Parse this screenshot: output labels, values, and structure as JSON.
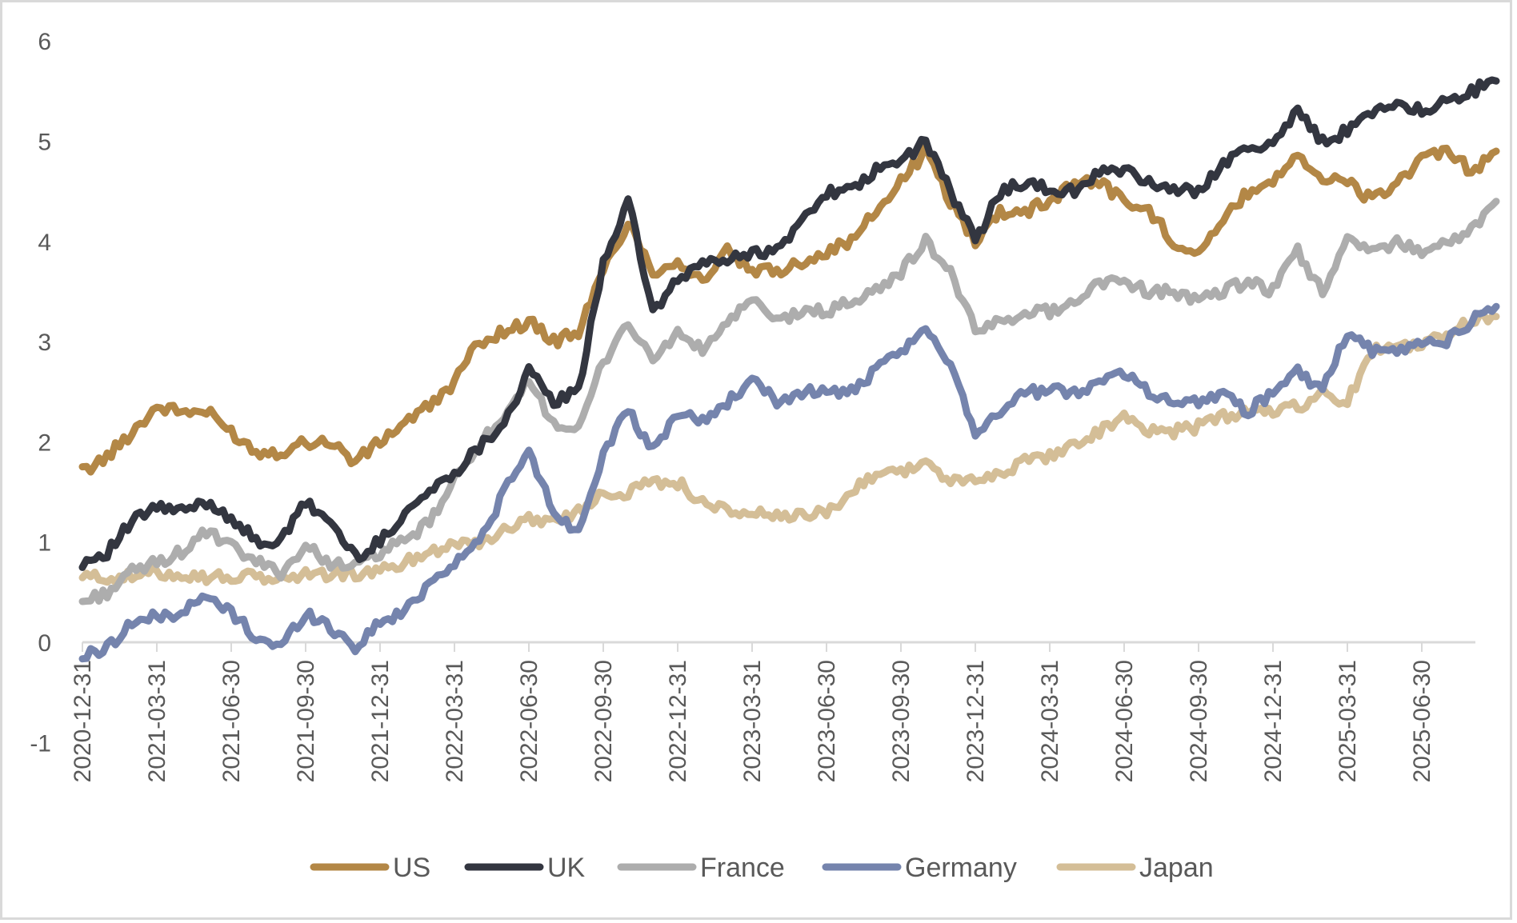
{
  "chart_data": {
    "type": "line",
    "title": "",
    "xlabel": "",
    "ylabel": "",
    "ylim": [
      -1,
      6
    ],
    "y_ticks": [
      "-1",
      "0",
      "1",
      "2",
      "3",
      "4",
      "5",
      "6"
    ],
    "x_tick_labels": [
      "2020-12-31",
      "2021-03-31",
      "2021-06-30",
      "2021-09-30",
      "2021-12-31",
      "2022-03-31",
      "2022-06-30",
      "2022-09-30",
      "2022-12-31",
      "2023-03-31",
      "2023-06-30",
      "2023-09-30",
      "2023-12-31",
      "2024-03-31",
      "2024-06-30",
      "2024-09-30",
      "2024-12-31",
      "2025-03-31",
      "2025-06-30"
    ],
    "x": [
      "2020-12",
      "2021-01",
      "2021-02",
      "2021-03",
      "2021-04",
      "2021-05",
      "2021-06",
      "2021-07",
      "2021-08",
      "2021-09",
      "2021-10",
      "2021-11",
      "2021-12",
      "2022-01",
      "2022-02",
      "2022-03",
      "2022-04",
      "2022-05",
      "2022-06",
      "2022-07",
      "2022-08",
      "2022-09",
      "2022-10",
      "2022-11",
      "2022-12",
      "2023-01",
      "2023-02",
      "2023-03",
      "2023-04",
      "2023-05",
      "2023-06",
      "2023-07",
      "2023-08",
      "2023-09",
      "2023-10",
      "2023-11",
      "2023-12",
      "2024-01",
      "2024-02",
      "2024-03",
      "2024-04",
      "2024-05",
      "2024-06",
      "2024-07",
      "2024-08",
      "2024-09",
      "2024-10",
      "2024-11",
      "2024-12",
      "2025-01",
      "2025-02",
      "2025-03",
      "2025-04",
      "2025-05",
      "2025-06",
      "2025-07",
      "2025-08",
      "2025-09"
    ],
    "grid": false,
    "legend_position": "bottom",
    "series": [
      {
        "name": "US",
        "color": "#b38746",
        "values": [
          1.7,
          1.85,
          2.1,
          2.35,
          2.3,
          2.3,
          2.1,
          1.9,
          1.9,
          2.0,
          2.0,
          1.8,
          2.0,
          2.2,
          2.35,
          2.6,
          3.0,
          3.1,
          3.2,
          3.0,
          3.1,
          3.7,
          4.2,
          3.7,
          3.8,
          3.6,
          3.9,
          3.7,
          3.7,
          3.8,
          3.9,
          4.0,
          4.3,
          4.6,
          4.9,
          4.4,
          4.0,
          4.3,
          4.3,
          4.4,
          4.6,
          4.6,
          4.4,
          4.3,
          4.0,
          3.9,
          4.2,
          4.5,
          4.6,
          4.9,
          4.6,
          4.6,
          4.4,
          4.6,
          4.8,
          4.9,
          4.7,
          4.9
        ]
      },
      {
        "name": "UK",
        "color": "#333640",
        "values": [
          0.8,
          0.9,
          1.2,
          1.35,
          1.3,
          1.4,
          1.25,
          1.0,
          1.0,
          1.4,
          1.2,
          0.85,
          1.0,
          1.3,
          1.5,
          1.7,
          1.95,
          2.2,
          2.7,
          2.4,
          2.5,
          3.8,
          4.4,
          3.3,
          3.6,
          3.8,
          3.8,
          3.9,
          3.9,
          4.2,
          4.5,
          4.5,
          4.7,
          4.8,
          5.0,
          4.5,
          4.0,
          4.5,
          4.6,
          4.5,
          4.5,
          4.7,
          4.7,
          4.6,
          4.5,
          4.5,
          4.8,
          4.9,
          5.0,
          5.3,
          5.0,
          5.1,
          5.3,
          5.4,
          5.3,
          5.4,
          5.5,
          5.6
        ]
      },
      {
        "name": "France",
        "color": "#adadad",
        "values": [
          0.4,
          0.5,
          0.7,
          0.8,
          0.9,
          1.1,
          0.95,
          0.8,
          0.7,
          0.95,
          0.8,
          0.75,
          0.9,
          1.0,
          1.2,
          1.6,
          2.0,
          2.2,
          2.6,
          2.2,
          2.1,
          2.8,
          3.2,
          2.8,
          3.1,
          2.9,
          3.2,
          3.4,
          3.2,
          3.3,
          3.3,
          3.4,
          3.5,
          3.7,
          4.0,
          3.7,
          3.1,
          3.2,
          3.3,
          3.3,
          3.4,
          3.6,
          3.6,
          3.5,
          3.5,
          3.4,
          3.5,
          3.6,
          3.5,
          3.9,
          3.5,
          4.0,
          3.9,
          4.0,
          3.9,
          4.0,
          4.1,
          4.4
        ]
      },
      {
        "name": "Germany",
        "color": "#7584ad",
        "values": [
          -0.15,
          -0.05,
          0.2,
          0.25,
          0.3,
          0.45,
          0.3,
          0.05,
          -0.05,
          0.3,
          0.15,
          -0.05,
          0.2,
          0.3,
          0.6,
          0.8,
          1.0,
          1.5,
          1.9,
          1.3,
          1.1,
          1.9,
          2.3,
          1.9,
          2.3,
          2.2,
          2.4,
          2.6,
          2.4,
          2.5,
          2.5,
          2.5,
          2.7,
          2.9,
          3.1,
          2.8,
          2.1,
          2.3,
          2.5,
          2.5,
          2.5,
          2.6,
          2.7,
          2.5,
          2.4,
          2.4,
          2.5,
          2.3,
          2.5,
          2.7,
          2.5,
          3.1,
          2.9,
          2.9,
          3.0,
          3.0,
          3.2,
          3.35
        ]
      },
      {
        "name": "Japan",
        "color": "#d4be97",
        "values": [
          0.65,
          0.65,
          0.65,
          0.7,
          0.68,
          0.65,
          0.65,
          0.65,
          0.63,
          0.68,
          0.68,
          0.68,
          0.7,
          0.8,
          0.9,
          1.0,
          1.0,
          1.1,
          1.25,
          1.2,
          1.3,
          1.5,
          1.5,
          1.6,
          1.6,
          1.4,
          1.3,
          1.3,
          1.25,
          1.25,
          1.3,
          1.5,
          1.7,
          1.7,
          1.8,
          1.6,
          1.6,
          1.7,
          1.8,
          1.85,
          2.0,
          2.1,
          2.25,
          2.1,
          2.1,
          2.15,
          2.25,
          2.3,
          2.3,
          2.35,
          2.5,
          2.4,
          2.9,
          3.0,
          2.95,
          3.1,
          3.2,
          3.25
        ]
      }
    ]
  }
}
